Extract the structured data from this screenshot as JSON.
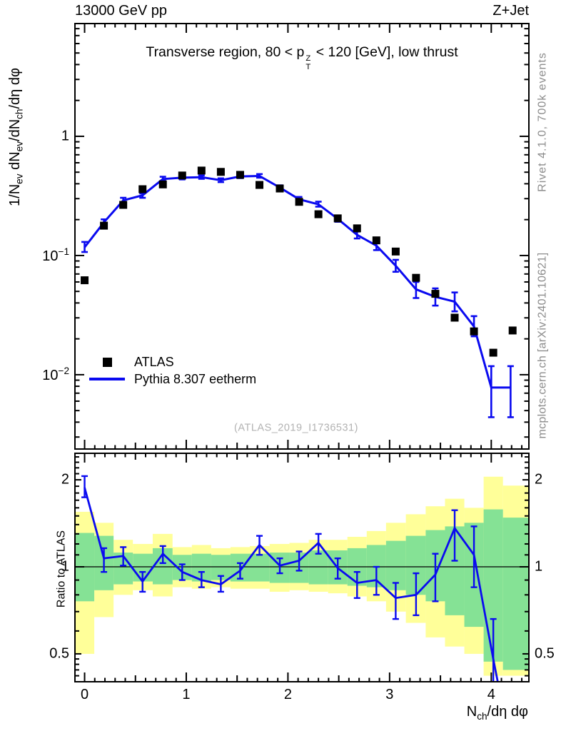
{
  "header": {
    "left": "13000 GeV pp",
    "right": "Z+Jet"
  },
  "panel_title_rich": [
    {
      "t": "Transverse region, 80 < p"
    },
    {
      "stack": [
        "Z",
        "T"
      ]
    },
    {
      "t": " < 120 [GeV], low thrust"
    }
  ],
  "legend": {
    "items": [
      {
        "label": "ATLAS",
        "marker": "square",
        "color": "#000000"
      },
      {
        "label": "Pythia 8.307 eetherm",
        "marker": "line",
        "color": "#0a0af0"
      }
    ]
  },
  "watermark": "(ATLAS_2019_I1736531)",
  "side_notes": {
    "top": "Rivet 4.1.0,  700k events",
    "bottom": "mcplots.cern.ch [arXiv:2401.10621]"
  },
  "axes": {
    "x": {
      "lim": [
        -0.095,
        4.37
      ],
      "major": [
        0,
        1,
        2,
        3,
        4
      ],
      "labels": [
        "0",
        "1",
        "2",
        "3",
        "4"
      ],
      "label_rich": [
        {
          "t": "N"
        },
        {
          "sub": "ch"
        },
        {
          "t": "/dη dφ"
        }
      ]
    },
    "y_main": {
      "lim": [
        0.00238,
        8.83
      ],
      "ticks": [
        {
          "v": 1,
          "base": "1",
          "exp": ""
        },
        {
          "v": 0.1,
          "base": "10",
          "exp": "−1"
        },
        {
          "v": 0.01,
          "base": "10",
          "exp": "−2"
        }
      ],
      "label_rich": [
        {
          "t": "1/N"
        },
        {
          "sub": "ev"
        },
        {
          "t": " dN"
        },
        {
          "sub": "ev"
        },
        {
          "t": "/dN"
        },
        {
          "sub": "ch"
        },
        {
          "t": "/dη dφ"
        }
      ]
    },
    "y_ratio": {
      "lim": [
        0.4004,
        2.47
      ],
      "label": "Ratio to ATLAS",
      "ticks": [
        {
          "v": 2,
          "label": "2"
        },
        {
          "v": 1,
          "label": "1"
        },
        {
          "v": 0.5,
          "label": "0.5"
        }
      ]
    }
  },
  "colors": {
    "mc_line": "#0a0af0",
    "data_marker": "#000000",
    "band_outer": "#ffff99",
    "band_inner": "#85e295",
    "note_text": "#8c8c8c",
    "watermark_text": "#b2b2b2",
    "frame": "#000000"
  },
  "chart_data": {
    "type": "line",
    "title": "Transverse region, 80 < pT^Z < 120 [GeV], low thrust",
    "xlabel": "Nch/deta dphi",
    "ylabel_top": "1/Nev dNev/dNch/deta dphi",
    "ylabel_bottom": "Ratio to ATLAS",
    "xlim": [
      -0.095,
      4.37
    ],
    "x_centers": [
      0,
      0.19,
      0.38,
      0.57,
      0.77,
      0.96,
      1.15,
      1.34,
      1.53,
      1.72,
      1.92,
      2.11,
      2.3,
      2.49,
      2.68,
      2.87,
      3.06,
      3.26,
      3.45,
      3.64,
      3.83,
      4.02,
      4.21
    ],
    "atlas": {
      "y": [
        0.062,
        0.178,
        0.266,
        0.36,
        0.395,
        0.469,
        0.516,
        0.503,
        0.475,
        0.391,
        0.365,
        0.282,
        0.222,
        0.205,
        0.169,
        0.134,
        0.108,
        0.065,
        0.0477,
        0.0301,
        0.0231,
        0.0153,
        0.0235
      ]
    },
    "pythia": {
      "x": [
        0,
        0.19,
        0.38,
        0.57,
        0.77,
        0.96,
        1.15,
        1.34,
        1.53,
        1.72,
        1.92,
        2.11,
        2.3,
        2.49,
        2.68,
        2.87,
        3.06,
        3.26,
        3.45,
        3.64,
        3.83,
        4.0,
        4.19
      ],
      "y": [
        0.117,
        0.19,
        0.29,
        0.32,
        0.438,
        0.45,
        0.454,
        0.428,
        0.461,
        0.465,
        0.372,
        0.296,
        0.269,
        0.203,
        0.149,
        0.121,
        0.082,
        0.052,
        0.045,
        0.041,
        0.0254,
        0.0078,
        0.0078
      ],
      "ylo": [
        0.107,
        0.18,
        0.278,
        0.305,
        0.423,
        0.435,
        0.44,
        0.413,
        0.446,
        0.45,
        0.358,
        0.284,
        0.257,
        0.192,
        0.139,
        0.111,
        0.073,
        0.044,
        0.038,
        0.034,
        0.021,
        0.0044,
        0.0044
      ],
      "yhi": [
        0.13,
        0.201,
        0.305,
        0.332,
        0.458,
        0.467,
        0.47,
        0.444,
        0.477,
        0.482,
        0.388,
        0.31,
        0.283,
        0.215,
        0.159,
        0.132,
        0.092,
        0.06,
        0.053,
        0.049,
        0.031,
        0.0118,
        0.0118
      ]
    },
    "ratio": {
      "x": [
        0,
        0.19,
        0.38,
        0.57,
        0.77,
        0.96,
        1.15,
        1.34,
        1.53,
        1.72,
        1.92,
        2.11,
        2.3,
        2.49,
        2.68,
        2.87,
        3.06,
        3.26,
        3.45,
        3.64,
        3.83,
        4.02,
        4.11
      ],
      "y": [
        1.88,
        1.07,
        1.09,
        0.89,
        1.11,
        0.96,
        0.9,
        0.87,
        0.97,
        1.19,
        1.01,
        1.05,
        1.21,
        0.99,
        0.88,
        0.9,
        0.78,
        0.8,
        0.94,
        1.36,
        1.1,
        0.48,
        0.33
      ],
      "ylo": [
        1.74,
        0.96,
        1.01,
        0.82,
        1.03,
        0.9,
        0.85,
        0.82,
        0.91,
        1.1,
        0.95,
        0.97,
        1.11,
        0.91,
        0.78,
        0.8,
        0.66,
        0.68,
        0.76,
        1.05,
        0.85,
        0.28,
        null
      ],
      "yhi": [
        2.06,
        1.16,
        1.17,
        0.96,
        1.18,
        1.02,
        0.96,
        0.93,
        1.03,
        1.28,
        1.07,
        1.13,
        1.3,
        1.07,
        0.96,
        1.0,
        0.88,
        0.95,
        1.11,
        1.57,
        1.38,
        0.66,
        null
      ]
    },
    "bands": {
      "yellow_lo": [
        0.5,
        0.67,
        0.8,
        0.83,
        0.79,
        0.85,
        0.84,
        0.85,
        0.84,
        0.84,
        0.82,
        0.83,
        0.82,
        0.81,
        0.79,
        0.76,
        0.7,
        0.64,
        0.57,
        0.53,
        0.5,
        0.42,
        0.42
      ],
      "yellow_hi": [
        1.55,
        1.42,
        1.24,
        1.2,
        1.3,
        1.17,
        1.19,
        1.16,
        1.17,
        1.18,
        1.2,
        1.21,
        1.24,
        1.24,
        1.27,
        1.33,
        1.42,
        1.52,
        1.62,
        1.72,
        1.6,
        2.05,
        1.91
      ],
      "green_lo": [
        0.76,
        0.83,
        0.87,
        0.89,
        0.87,
        0.9,
        0.89,
        0.9,
        0.89,
        0.89,
        0.88,
        0.88,
        0.87,
        0.87,
        0.86,
        0.85,
        0.83,
        0.8,
        0.76,
        0.68,
        0.62,
        0.47,
        0.44
      ],
      "green_hi": [
        1.31,
        1.28,
        1.12,
        1.11,
        1.16,
        1.1,
        1.11,
        1.1,
        1.11,
        1.11,
        1.12,
        1.12,
        1.14,
        1.14,
        1.16,
        1.19,
        1.23,
        1.28,
        1.34,
        1.38,
        1.42,
        1.58,
        1.48
      ]
    }
  }
}
